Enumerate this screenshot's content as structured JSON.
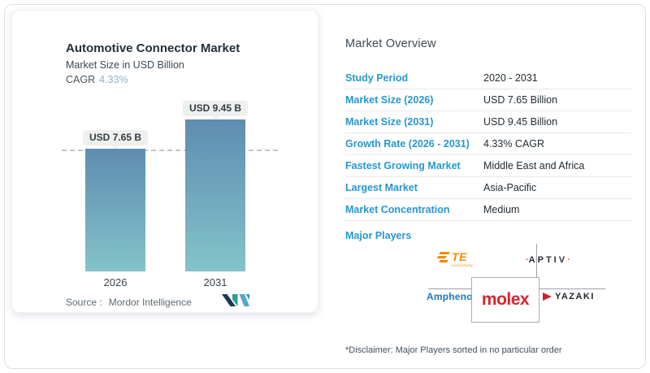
{
  "chart_card": {
    "title": "Automotive Connector Market",
    "subtitle": "Market Size in USD Billion",
    "cagr_label": "CAGR",
    "cagr_value": "4.33%",
    "source_label": "Source :",
    "source_value": "Mordor Intelligence"
  },
  "chart_data": {
    "type": "bar",
    "title": "Automotive Connector Market",
    "subtitle": "Market Size in USD Billion",
    "categories": [
      "2026",
      "2031"
    ],
    "values": [
      7.65,
      9.45
    ],
    "value_labels": [
      "USD 7.65 B",
      "USD 9.45 B"
    ],
    "unit": "USD Billion",
    "ylim": [
      0,
      9.45
    ],
    "reference_line": 7.65,
    "grid": "off",
    "legend": "none",
    "bar_colors": {
      "top": "#5e8db1",
      "bottom": "#84c3c9"
    }
  },
  "overview": {
    "heading": "Market Overview",
    "rows": [
      {
        "label": "Study Period",
        "value": "2020 - 2031"
      },
      {
        "label": "Market Size (2026)",
        "value": "USD 7.65 Billion"
      },
      {
        "label": "Market Size (2031)",
        "value": "USD 9.45 Billion"
      },
      {
        "label": "Growth Rate (2026 - 2031)",
        "value": "4.33% CAGR"
      },
      {
        "label": "Fastest Growing Market",
        "value": "Middle East and Africa"
      },
      {
        "label": "Largest Market",
        "value": "Asia-Pacific"
      },
      {
        "label": "Market Concentration",
        "value": "Medium"
      }
    ],
    "major_players_label": "Major Players",
    "players": {
      "te": {
        "name": "TE",
        "sub": "connectivity"
      },
      "aptiv": {
        "name": "APTIV",
        "dot": "·"
      },
      "amphenol": {
        "name": "Amphenol"
      },
      "molex": {
        "name": "molex"
      },
      "yazaki": {
        "name": "YAZAKI"
      }
    },
    "label_color": "#2697cf",
    "disclaimer": "*Disclaimer: Major Players sorted in no particular order"
  }
}
